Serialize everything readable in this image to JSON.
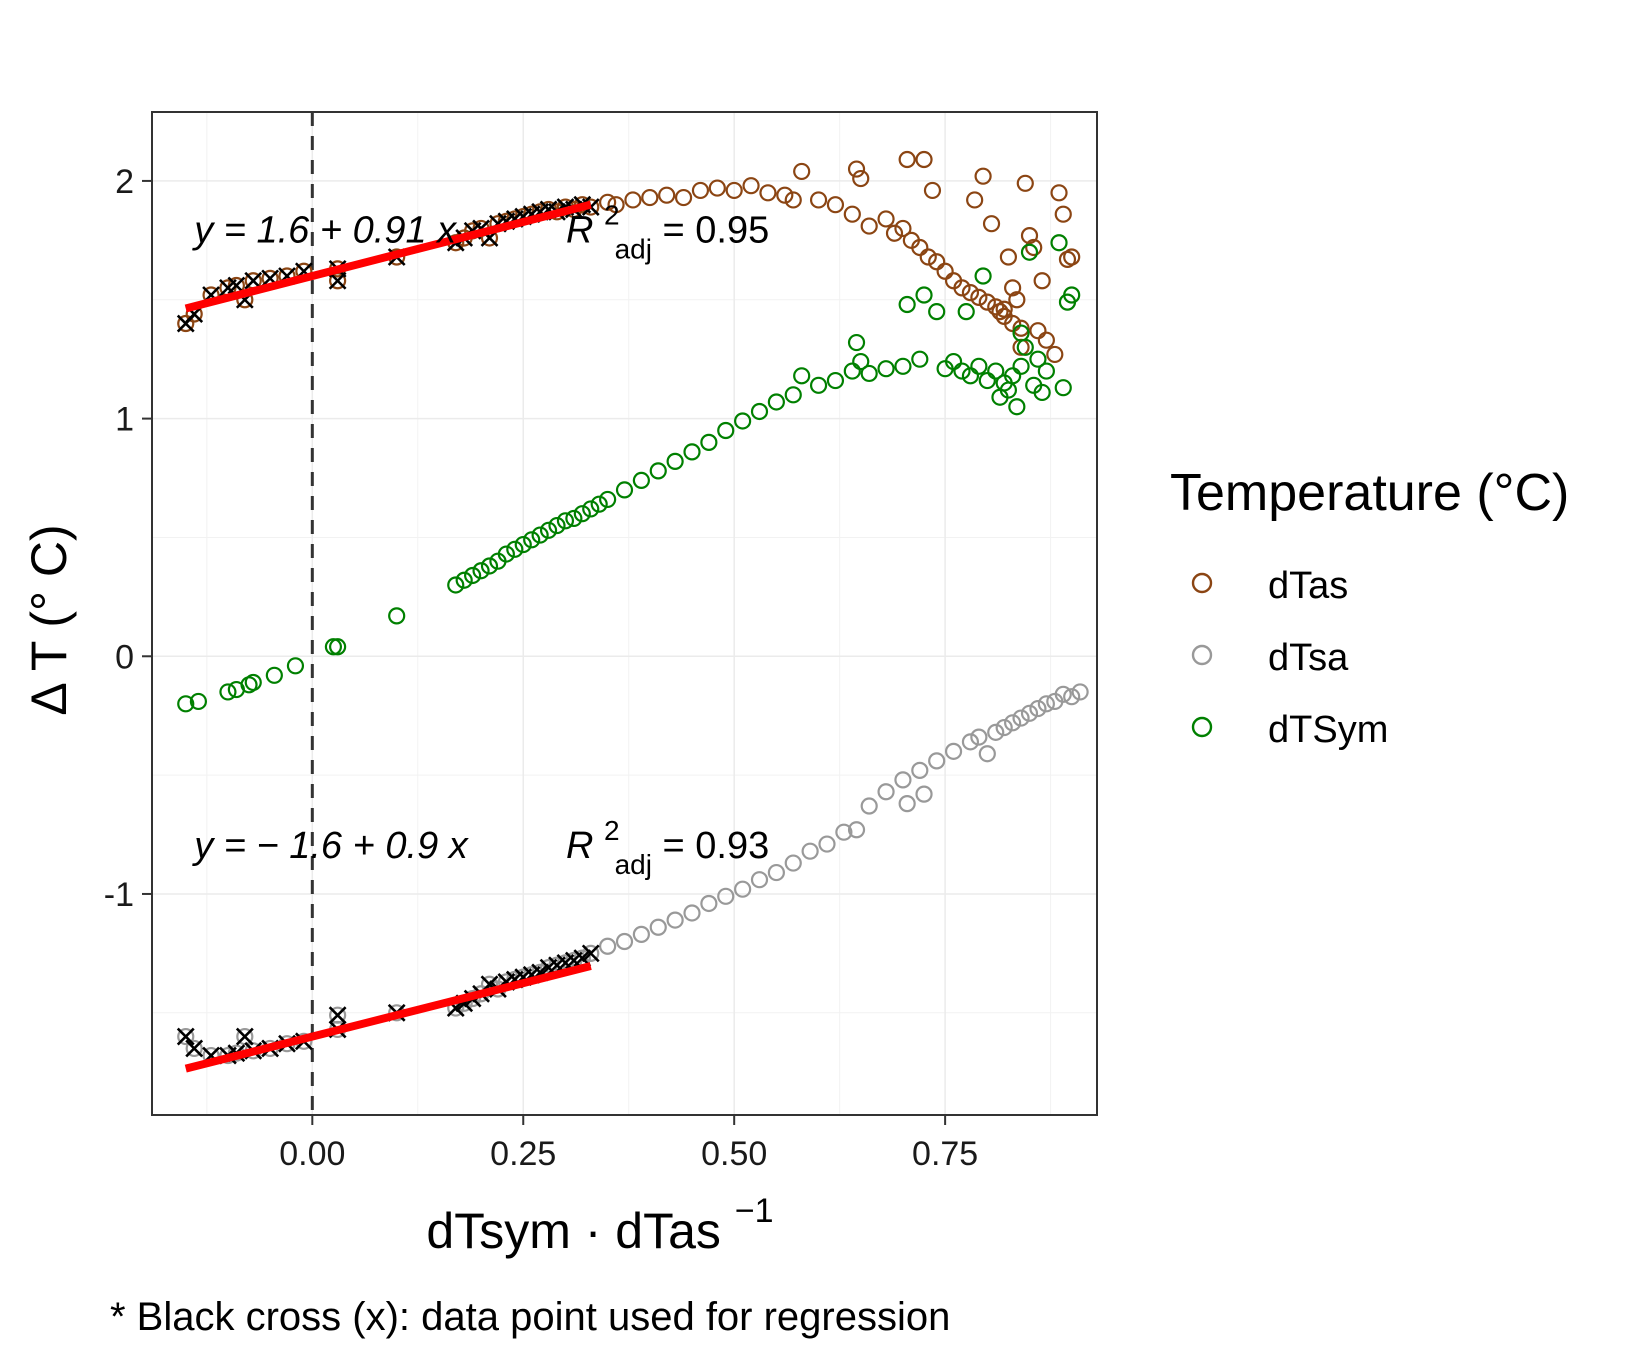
{
  "chart_data": {
    "type": "scatter",
    "xlabel_main": "dTsym · dTas",
    "xlabel_sup": "−1",
    "ylabel": "Δ T (° C)",
    "xlim": [
      -0.19,
      0.93
    ],
    "ylim": [
      -1.93,
      2.29
    ],
    "x_ticks": [
      0.0,
      0.25,
      0.5,
      0.75
    ],
    "x_tick_labels": [
      "0.00",
      "0.25",
      "0.50",
      "0.75"
    ],
    "y_ticks": [
      -1,
      0,
      1,
      2
    ],
    "y_tick_labels": [
      "-1",
      "0",
      "1",
      "2"
    ],
    "grid": true,
    "vline": {
      "x": 0.0,
      "style": "dashed"
    },
    "legend": {
      "title": "Temperature (°C)",
      "placement": "right",
      "entries": [
        {
          "label": "dTas",
          "color": "#8B4513"
        },
        {
          "label": "dTsa",
          "color": "#999999"
        },
        {
          "label": "dTSym",
          "color": "#008000"
        }
      ]
    },
    "annotations": [
      {
        "eq": "y = 1.6 + 0.91 x",
        "r2_prefix": "R",
        "r2_sup": "2",
        "r2_sub": "adj",
        "r2_value": " = 0.95",
        "x": -0.14,
        "y": 1.8
      },
      {
        "eq": "y = − 1.6 + 0.9 x",
        "r2_prefix": "R",
        "r2_sup": "2",
        "r2_sub": "adj",
        "r2_value": " = 0.93",
        "x": -0.14,
        "y": -0.79
      }
    ],
    "regression_lines": [
      {
        "series": "dTas",
        "intercept": 1.6,
        "slope": 0.91,
        "x_range": [
          -0.15,
          0.33
        ],
        "color": "#FF0000"
      },
      {
        "series": "dTsa",
        "intercept": -1.6,
        "slope": 0.9,
        "x_range": [
          -0.15,
          0.33
        ],
        "color": "#FF0000"
      }
    ],
    "caption": "* Black cross (x): data point used for regression",
    "series": [
      {
        "name": "dTas",
        "color": "#8B4513",
        "points": [
          [
            -0.15,
            1.4
          ],
          [
            -0.14,
            1.44
          ],
          [
            -0.12,
            1.52
          ],
          [
            -0.1,
            1.55
          ],
          [
            -0.09,
            1.56
          ],
          [
            -0.08,
            1.5
          ],
          [
            -0.07,
            1.58
          ],
          [
            -0.05,
            1.59
          ],
          [
            -0.03,
            1.6
          ],
          [
            -0.01,
            1.62
          ],
          [
            0.03,
            1.58
          ],
          [
            0.03,
            1.63
          ],
          [
            0.1,
            1.68
          ],
          [
            0.17,
            1.74
          ],
          [
            0.18,
            1.76
          ],
          [
            0.19,
            1.79
          ],
          [
            0.2,
            1.8
          ],
          [
            0.21,
            1.76
          ],
          [
            0.22,
            1.82
          ],
          [
            0.23,
            1.83
          ],
          [
            0.24,
            1.84
          ],
          [
            0.25,
            1.85
          ],
          [
            0.26,
            1.86
          ],
          [
            0.27,
            1.87
          ],
          [
            0.28,
            1.88
          ],
          [
            0.29,
            1.87
          ],
          [
            0.3,
            1.89
          ],
          [
            0.31,
            1.88
          ],
          [
            0.32,
            1.9
          ],
          [
            0.33,
            1.89
          ],
          [
            0.35,
            1.91
          ],
          [
            0.36,
            1.9
          ],
          [
            0.38,
            1.92
          ],
          [
            0.4,
            1.93
          ],
          [
            0.42,
            1.94
          ],
          [
            0.44,
            1.93
          ],
          [
            0.46,
            1.96
          ],
          [
            0.48,
            1.97
          ],
          [
            0.5,
            1.96
          ],
          [
            0.52,
            1.98
          ],
          [
            0.54,
            1.95
          ],
          [
            0.56,
            1.94
          ],
          [
            0.57,
            1.92
          ],
          [
            0.58,
            2.04
          ],
          [
            0.6,
            1.92
          ],
          [
            0.62,
            1.9
          ],
          [
            0.64,
            1.86
          ],
          [
            0.645,
            2.05
          ],
          [
            0.65,
            2.01
          ],
          [
            0.66,
            1.81
          ],
          [
            0.68,
            1.84
          ],
          [
            0.69,
            1.78
          ],
          [
            0.7,
            1.8
          ],
          [
            0.705,
            2.09
          ],
          [
            0.71,
            1.75
          ],
          [
            0.72,
            1.72
          ],
          [
            0.725,
            2.09
          ],
          [
            0.73,
            1.68
          ],
          [
            0.735,
            1.96
          ],
          [
            0.74,
            1.66
          ],
          [
            0.75,
            1.62
          ],
          [
            0.76,
            1.58
          ],
          [
            0.77,
            1.55
          ],
          [
            0.78,
            1.53
          ],
          [
            0.785,
            1.92
          ],
          [
            0.79,
            1.51
          ],
          [
            0.795,
            2.02
          ],
          [
            0.8,
            1.49
          ],
          [
            0.805,
            1.82
          ],
          [
            0.81,
            1.47
          ],
          [
            0.815,
            1.45
          ],
          [
            0.82,
            1.43
          ],
          [
            0.825,
            1.68
          ],
          [
            0.83,
            1.4
          ],
          [
            0.835,
            1.5
          ],
          [
            0.84,
            1.38
          ],
          [
            0.845,
            1.99
          ],
          [
            0.85,
            1.77
          ],
          [
            0.855,
            1.72
          ],
          [
            0.86,
            1.37
          ],
          [
            0.865,
            1.58
          ],
          [
            0.87,
            1.33
          ],
          [
            0.88,
            1.27
          ],
          [
            0.885,
            1.95
          ],
          [
            0.89,
            1.86
          ],
          [
            0.895,
            1.67
          ],
          [
            0.9,
            1.68
          ],
          [
            0.84,
            1.3
          ],
          [
            0.83,
            1.55
          ],
          [
            0.82,
            1.46
          ]
        ]
      },
      {
        "name": "dTsa",
        "color": "#999999",
        "points": [
          [
            -0.15,
            -1.6
          ],
          [
            -0.14,
            -1.65
          ],
          [
            -0.12,
            -1.68
          ],
          [
            -0.1,
            -1.68
          ],
          [
            -0.09,
            -1.67
          ],
          [
            -0.08,
            -1.6
          ],
          [
            -0.07,
            -1.66
          ],
          [
            -0.05,
            -1.65
          ],
          [
            -0.03,
            -1.63
          ],
          [
            -0.01,
            -1.62
          ],
          [
            0.03,
            -1.51
          ],
          [
            0.03,
            -1.57
          ],
          [
            0.1,
            -1.5
          ],
          [
            0.17,
            -1.48
          ],
          [
            0.18,
            -1.46
          ],
          [
            0.19,
            -1.44
          ],
          [
            0.2,
            -1.42
          ],
          [
            0.21,
            -1.38
          ],
          [
            0.22,
            -1.4
          ],
          [
            0.23,
            -1.37
          ],
          [
            0.24,
            -1.36
          ],
          [
            0.25,
            -1.35
          ],
          [
            0.26,
            -1.34
          ],
          [
            0.27,
            -1.33
          ],
          [
            0.28,
            -1.31
          ],
          [
            0.29,
            -1.3
          ],
          [
            0.3,
            -1.29
          ],
          [
            0.31,
            -1.28
          ],
          [
            0.32,
            -1.27
          ],
          [
            0.33,
            -1.25
          ],
          [
            0.35,
            -1.22
          ],
          [
            0.37,
            -1.2
          ],
          [
            0.39,
            -1.17
          ],
          [
            0.41,
            -1.14
          ],
          [
            0.43,
            -1.11
          ],
          [
            0.45,
            -1.08
          ],
          [
            0.47,
            -1.04
          ],
          [
            0.49,
            -1.01
          ],
          [
            0.51,
            -0.98
          ],
          [
            0.53,
            -0.94
          ],
          [
            0.55,
            -0.91
          ],
          [
            0.57,
            -0.87
          ],
          [
            0.59,
            -0.82
          ],
          [
            0.61,
            -0.79
          ],
          [
            0.63,
            -0.74
          ],
          [
            0.645,
            -0.73
          ],
          [
            0.66,
            -0.63
          ],
          [
            0.68,
            -0.57
          ],
          [
            0.7,
            -0.52
          ],
          [
            0.705,
            -0.62
          ],
          [
            0.72,
            -0.48
          ],
          [
            0.725,
            -0.58
          ],
          [
            0.74,
            -0.44
          ],
          [
            0.76,
            -0.4
          ],
          [
            0.78,
            -0.36
          ],
          [
            0.79,
            -0.34
          ],
          [
            0.8,
            -0.41
          ],
          [
            0.81,
            -0.32
          ],
          [
            0.82,
            -0.3
          ],
          [
            0.83,
            -0.28
          ],
          [
            0.84,
            -0.26
          ],
          [
            0.85,
            -0.24
          ],
          [
            0.86,
            -0.22
          ],
          [
            0.87,
            -0.2
          ],
          [
            0.88,
            -0.19
          ],
          [
            0.89,
            -0.16
          ],
          [
            0.9,
            -0.17
          ],
          [
            0.91,
            -0.15
          ]
        ]
      },
      {
        "name": "dTSym",
        "color": "#008000",
        "points": [
          [
            -0.15,
            -0.2
          ],
          [
            -0.135,
            -0.19
          ],
          [
            -0.1,
            -0.15
          ],
          [
            -0.09,
            -0.14
          ],
          [
            -0.075,
            -0.12
          ],
          [
            -0.07,
            -0.11
          ],
          [
            -0.045,
            -0.08
          ],
          [
            -0.02,
            -0.04
          ],
          [
            0.025,
            0.04
          ],
          [
            0.03,
            0.04
          ],
          [
            0.1,
            0.17
          ],
          [
            0.17,
            0.3
          ],
          [
            0.18,
            0.32
          ],
          [
            0.19,
            0.34
          ],
          [
            0.2,
            0.36
          ],
          [
            0.21,
            0.38
          ],
          [
            0.22,
            0.4
          ],
          [
            0.23,
            0.43
          ],
          [
            0.24,
            0.45
          ],
          [
            0.25,
            0.47
          ],
          [
            0.26,
            0.49
          ],
          [
            0.27,
            0.51
          ],
          [
            0.28,
            0.53
          ],
          [
            0.29,
            0.55
          ],
          [
            0.3,
            0.57
          ],
          [
            0.31,
            0.58
          ],
          [
            0.32,
            0.6
          ],
          [
            0.33,
            0.62
          ],
          [
            0.34,
            0.64
          ],
          [
            0.35,
            0.66
          ],
          [
            0.37,
            0.7
          ],
          [
            0.39,
            0.74
          ],
          [
            0.41,
            0.78
          ],
          [
            0.43,
            0.82
          ],
          [
            0.45,
            0.86
          ],
          [
            0.47,
            0.9
          ],
          [
            0.49,
            0.95
          ],
          [
            0.51,
            0.99
          ],
          [
            0.53,
            1.03
          ],
          [
            0.55,
            1.07
          ],
          [
            0.57,
            1.1
          ],
          [
            0.58,
            1.18
          ],
          [
            0.6,
            1.14
          ],
          [
            0.62,
            1.16
          ],
          [
            0.64,
            1.2
          ],
          [
            0.645,
            1.32
          ],
          [
            0.65,
            1.24
          ],
          [
            0.66,
            1.19
          ],
          [
            0.68,
            1.21
          ],
          [
            0.7,
            1.22
          ],
          [
            0.705,
            1.48
          ],
          [
            0.72,
            1.25
          ],
          [
            0.725,
            1.52
          ],
          [
            0.74,
            1.45
          ],
          [
            0.75,
            1.21
          ],
          [
            0.76,
            1.24
          ],
          [
            0.77,
            1.2
          ],
          [
            0.775,
            1.45
          ],
          [
            0.78,
            1.18
          ],
          [
            0.79,
            1.22
          ],
          [
            0.795,
            1.6
          ],
          [
            0.8,
            1.16
          ],
          [
            0.81,
            1.2
          ],
          [
            0.815,
            1.09
          ],
          [
            0.82,
            1.15
          ],
          [
            0.825,
            1.12
          ],
          [
            0.83,
            1.18
          ],
          [
            0.835,
            1.05
          ],
          [
            0.84,
            1.22
          ],
          [
            0.845,
            1.3
          ],
          [
            0.85,
            1.7
          ],
          [
            0.855,
            1.14
          ],
          [
            0.86,
            1.25
          ],
          [
            0.865,
            1.11
          ],
          [
            0.87,
            1.2
          ],
          [
            0.885,
            1.74
          ],
          [
            0.89,
            1.13
          ],
          [
            0.895,
            1.49
          ],
          [
            0.9,
            1.52
          ],
          [
            0.84,
            1.36
          ]
        ]
      }
    ],
    "regression_points": {
      "color": "#000000",
      "dTas_points": [
        [
          -0.15,
          1.4
        ],
        [
          -0.14,
          1.44
        ],
        [
          -0.12,
          1.52
        ],
        [
          -0.1,
          1.55
        ],
        [
          -0.09,
          1.56
        ],
        [
          -0.08,
          1.5
        ],
        [
          -0.07,
          1.58
        ],
        [
          -0.05,
          1.59
        ],
        [
          -0.03,
          1.6
        ],
        [
          -0.01,
          1.62
        ],
        [
          0.03,
          1.58
        ],
        [
          0.03,
          1.63
        ],
        [
          0.1,
          1.68
        ],
        [
          0.17,
          1.74
        ],
        [
          0.18,
          1.76
        ],
        [
          0.19,
          1.79
        ],
        [
          0.2,
          1.8
        ],
        [
          0.21,
          1.76
        ],
        [
          0.22,
          1.82
        ],
        [
          0.23,
          1.83
        ],
        [
          0.24,
          1.84
        ],
        [
          0.25,
          1.85
        ],
        [
          0.26,
          1.86
        ],
        [
          0.27,
          1.87
        ],
        [
          0.28,
          1.88
        ],
        [
          0.29,
          1.87
        ],
        [
          0.3,
          1.89
        ],
        [
          0.31,
          1.88
        ],
        [
          0.32,
          1.9
        ],
        [
          0.33,
          1.89
        ]
      ],
      "dTsa_points": [
        [
          -0.15,
          -1.6
        ],
        [
          -0.14,
          -1.65
        ],
        [
          -0.12,
          -1.68
        ],
        [
          -0.1,
          -1.68
        ],
        [
          -0.09,
          -1.67
        ],
        [
          -0.08,
          -1.6
        ],
        [
          -0.07,
          -1.66
        ],
        [
          -0.05,
          -1.65
        ],
        [
          -0.03,
          -1.63
        ],
        [
          -0.01,
          -1.62
        ],
        [
          0.03,
          -1.51
        ],
        [
          0.03,
          -1.57
        ],
        [
          0.1,
          -1.5
        ],
        [
          0.17,
          -1.48
        ],
        [
          0.18,
          -1.46
        ],
        [
          0.19,
          -1.44
        ],
        [
          0.2,
          -1.42
        ],
        [
          0.21,
          -1.38
        ],
        [
          0.22,
          -1.4
        ],
        [
          0.23,
          -1.37
        ],
        [
          0.24,
          -1.36
        ],
        [
          0.25,
          -1.35
        ],
        [
          0.26,
          -1.34
        ],
        [
          0.27,
          -1.33
        ],
        [
          0.28,
          -1.31
        ],
        [
          0.29,
          -1.3
        ],
        [
          0.3,
          -1.29
        ],
        [
          0.31,
          -1.28
        ],
        [
          0.32,
          -1.27
        ],
        [
          0.33,
          -1.25
        ]
      ]
    }
  }
}
